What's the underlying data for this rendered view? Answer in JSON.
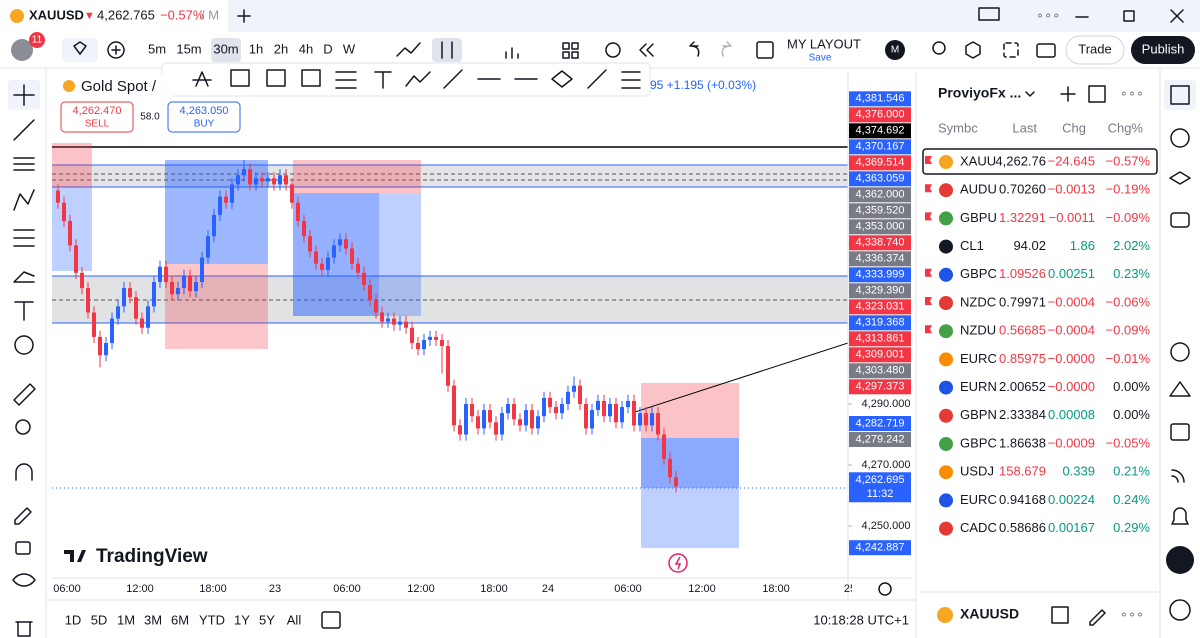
{
  "tab": {
    "symbol": "XAUUSD",
    "arrow": "▼",
    "price": "4,262.765",
    "change": "−0.57%",
    "suffix": "/ M"
  },
  "toolbar": {
    "badge": "11",
    "intervals": [
      "5m",
      "15m",
      "30m",
      "1h",
      "2h",
      "4h",
      "D",
      "W"
    ],
    "layout": "MY LAYOUT",
    "save": "Save",
    "avatar": "M",
    "trade": "Trade",
    "publish": "Publish"
  },
  "legend": {
    "symbol": "Gold Spot /",
    "sell_price": "4,262.470",
    "sell": "SELL",
    "spread": "58.0",
    "buy_price": "4,263.050",
    "buy": "BUY",
    "change": "95 +1.195 (+0.03%)"
  },
  "chart_data": {
    "type": "candlestick",
    "up_color": "#2962ff",
    "down_color": "#f23645",
    "open": [
      4360,
      4356,
      4350,
      4342,
      4333,
      4328,
      4320,
      4312,
      4306,
      4310,
      4318,
      4322,
      4328,
      4325,
      4318,
      4315,
      4322,
      4330,
      4335,
      4330,
      4326,
      4328,
      4332,
      4327,
      4330,
      4338,
      4345,
      4352,
      4358,
      4356,
      4362,
      4365,
      4367,
      4362,
      4364,
      4363,
      4364,
      4362,
      4365,
      4362,
      4356,
      4350,
      4345,
      4340,
      4336,
      4334,
      4338,
      4342,
      4344,
      4341,
      4336,
      4333,
      4329,
      4324,
      4320,
      4317,
      4318,
      4316,
      4317,
      4315,
      4310,
      4308,
      4311,
      4312,
      4311,
      4309,
      4296,
      4283,
      4280,
      4290,
      4286,
      4282,
      4288,
      4284,
      4280,
      4287,
      4290,
      4285,
      4283,
      4288,
      4282,
      4286,
      4292,
      4289,
      4287,
      4290,
      4294,
      4296,
      4290,
      4282,
      4288,
      4291,
      4286,
      4290,
      4284,
      4289,
      4291,
      4283,
      4287,
      4283,
      4287,
      4280,
      4272,
      4266
    ],
    "high": [
      4362,
      4358,
      4352,
      4344,
      4335,
      4330,
      4322,
      4314,
      4312,
      4320,
      4324,
      4330,
      4330,
      4327,
      4320,
      4324,
      4332,
      4337,
      4337,
      4332,
      4330,
      4334,
      4334,
      4332,
      4340,
      4347,
      4354,
      4360,
      4360,
      4364,
      4367,
      4370,
      4369,
      4366,
      4366,
      4366,
      4366,
      4367,
      4367,
      4364,
      4358,
      4352,
      4347,
      4342,
      4338,
      4340,
      4344,
      4346,
      4346,
      4343,
      4338,
      4335,
      4331,
      4326,
      4322,
      4320,
      4320,
      4319,
      4319,
      4317,
      4312,
      4313,
      4314,
      4314,
      4313,
      4311,
      4298,
      4285,
      4292,
      4292,
      4288,
      4290,
      4290,
      4286,
      4289,
      4292,
      4292,
      4287,
      4290,
      4290,
      4288,
      4294,
      4294,
      4291,
      4292,
      4296,
      4299,
      4298,
      4292,
      4290,
      4293,
      4293,
      4292,
      4292,
      4291,
      4293,
      4293,
      4289,
      4289,
      4289,
      4289,
      4282,
      4274,
      4268
    ],
    "low": [
      4354,
      4348,
      4340,
      4331,
      4326,
      4318,
      4310,
      4302,
      4304,
      4308,
      4316,
      4320,
      4323,
      4316,
      4313,
      4313,
      4320,
      4328,
      4328,
      4324,
      4324,
      4326,
      4325,
      4325,
      4328,
      4336,
      4343,
      4350,
      4354,
      4354,
      4360,
      4363,
      4360,
      4360,
      4361,
      4361,
      4360,
      4360,
      4360,
      4354,
      4348,
      4343,
      4338,
      4334,
      4332,
      4332,
      4336,
      4340,
      4339,
      4334,
      4331,
      4327,
      4322,
      4318,
      4315,
      4315,
      4314,
      4314,
      4313,
      4308,
      4306,
      4306,
      4309,
      4309,
      4300,
      4294,
      4281,
      4278,
      4278,
      4284,
      4280,
      4280,
      4282,
      4278,
      4278,
      4285,
      4283,
      4281,
      4281,
      4280,
      4280,
      4284,
      4287,
      4285,
      4285,
      4288,
      4292,
      4288,
      4280,
      4280,
      4286,
      4284,
      4284,
      4282,
      4282,
      4287,
      4281,
      4281,
      4281,
      4281,
      4278,
      4270,
      4264,
      4261
    ],
    "close": [
      4356,
      4350,
      4342,
      4333,
      4328,
      4320,
      4312,
      4306,
      4310,
      4318,
      4322,
      4328,
      4325,
      4318,
      4315,
      4322,
      4330,
      4335,
      4330,
      4326,
      4328,
      4332,
      4327,
      4330,
      4338,
      4345,
      4352,
      4358,
      4356,
      4362,
      4365,
      4367,
      4362,
      4364,
      4363,
      4364,
      4362,
      4365,
      4362,
      4356,
      4350,
      4345,
      4340,
      4336,
      4334,
      4338,
      4342,
      4344,
      4341,
      4336,
      4333,
      4329,
      4324,
      4320,
      4317,
      4318,
      4316,
      4317,
      4315,
      4310,
      4308,
      4311,
      4312,
      4311,
      4309,
      4296,
      4283,
      4280,
      4290,
      4286,
      4282,
      4288,
      4284,
      4280,
      4287,
      4290,
      4285,
      4283,
      4288,
      4282,
      4286,
      4292,
      4289,
      4287,
      4290,
      4294,
      4296,
      4290,
      4282,
      4288,
      4291,
      4286,
      4290,
      4284,
      4289,
      4291,
      4283,
      4287,
      4283,
      4287,
      4280,
      4272,
      4266,
      4263
    ],
    "ylim": [
      4232.95,
      4398.85
    ],
    "yticks": [
      {
        "value": 4290,
        "label": "4,290.000"
      },
      {
        "value": 4270,
        "label": "4,270.000"
      },
      {
        "value": 4250,
        "label": "4,250.000"
      }
    ],
    "price_tags": [
      {
        "value": 4381.546,
        "label": "4,381.546",
        "color": "#2962ff"
      },
      {
        "value": 4376,
        "label": "4,376.000",
        "color": "#f23645"
      },
      {
        "value": 4374.692,
        "label": "4,374.692",
        "color": "#000000"
      },
      {
        "value": 4370.167,
        "label": "4,370.167",
        "color": "#2962ff"
      },
      {
        "value": 4369.514,
        "label": "4,369.514",
        "color": "#f23645"
      },
      {
        "value": 4363.059,
        "label": "4,363.059",
        "color": "#2962ff"
      },
      {
        "value": 4362,
        "label": "4,362.000",
        "color": "#787b86"
      },
      {
        "value": 4359.52,
        "label": "4,359.520",
        "color": "#787b86"
      },
      {
        "value": 4353,
        "label": "4,353.000",
        "color": "#787b86"
      },
      {
        "value": 4338.74,
        "label": "4,338.740",
        "color": "#f23645"
      },
      {
        "value": 4336.374,
        "label": "4,336.374",
        "color": "#787b86"
      },
      {
        "value": 4333.999,
        "label": "4,333.999",
        "color": "#2962ff"
      },
      {
        "value": 4329.39,
        "label": "4,329.390",
        "color": "#787b86"
      },
      {
        "value": 4323.031,
        "label": "4,323.031",
        "color": "#f23645"
      },
      {
        "value": 4319.368,
        "label": "4,319.368",
        "color": "#2962ff"
      },
      {
        "value": 4313.861,
        "label": "4,313.861",
        "color": "#f23645"
      },
      {
        "value": 4309.001,
        "label": "4,309.001",
        "color": "#f23645"
      },
      {
        "value": 4303.48,
        "label": "4,303.480",
        "color": "#787b86"
      },
      {
        "value": 4297.373,
        "label": "4,297.373",
        "color": "#f23645"
      },
      {
        "value": 4282.719,
        "label": "4,282.719",
        "color": "#2962ff"
      },
      {
        "value": 4279.242,
        "label": "4,279.242",
        "color": "#787b86"
      },
      {
        "value": 4262.695,
        "label": "4,262.695",
        "color": "#2962ff",
        "countdown": "11:32"
      },
      {
        "value": 4242.887,
        "label": "4,242.887",
        "color": "#2962ff"
      }
    ],
    "xlabels": [
      "06:00",
      "12:00",
      "18:00",
      "23",
      "06:00",
      "12:00",
      "18:00",
      "24",
      "06:00",
      "12:00",
      "18:00",
      "25"
    ],
    "logo": "TradingView"
  },
  "bottom": {
    "ranges": [
      "1D",
      "5D",
      "1M",
      "3M",
      "6M",
      "YTD",
      "1Y",
      "5Y",
      "All"
    ],
    "clock": "10:18:28 UTC+1"
  },
  "watchlist": {
    "title": "ProviyoFx ...",
    "columns": [
      "Symbc",
      "Last",
      "Chg",
      "Chg%"
    ],
    "rows": [
      {
        "symbol": "XAUU",
        "last": "4,262.76",
        "chg": "−24.645",
        "chg_pct": "−0.57%",
        "last_color": "#131722",
        "flag": "#f23645"
      },
      {
        "symbol": "AUDU",
        "last": "0.70260",
        "chg": "−0.0013",
        "chg_pct": "−0.19%",
        "last_color": "#131722",
        "flag": "#f23645"
      },
      {
        "symbol": "GBPU",
        "last": "1.32291",
        "chg": "−0.0011",
        "chg_pct": "−0.09%",
        "last_color": "#f23645",
        "flag": "#f23645"
      },
      {
        "symbol": "CL1",
        "last": "94.02",
        "chg": "1.86",
        "chg_pct": "2.02%",
        "last_color": "#131722"
      },
      {
        "symbol": "GBPC",
        "last": "1.09526",
        "chg": "0.00251",
        "chg_pct": "0.23%",
        "last_color": "#f23645",
        "flag": "#f23645"
      },
      {
        "symbol": "NZDC",
        "last": "0.79971",
        "chg": "−0.0004",
        "chg_pct": "−0.06%",
        "last_color": "#131722",
        "flag": "#f23645"
      },
      {
        "symbol": "NZDU",
        "last": "0.56685",
        "chg": "−0.0004",
        "chg_pct": "−0.09%",
        "last_color": "#f23645",
        "flag": "#f23645"
      },
      {
        "symbol": "EURC",
        "last": "0.85975",
        "chg": "−0.0000",
        "chg_pct": "−0.01%",
        "last_color": "#f23645"
      },
      {
        "symbol": "EURN",
        "last": "2.00652",
        "chg": "−0.0000",
        "chg_pct": "0.00%",
        "last_color": "#131722"
      },
      {
        "symbol": "GBPN",
        "last": "2.33384",
        "chg": "0.00008",
        "chg_pct": "0.00%",
        "last_color": "#131722"
      },
      {
        "symbol": "GBPC",
        "last": "1.86638",
        "chg": "−0.0009",
        "chg_pct": "−0.05%",
        "last_color": "#131722"
      },
      {
        "symbol": "USDJ",
        "last": "158.679",
        "chg": "0.339",
        "chg_pct": "0.21%",
        "last_color": "#f23645"
      },
      {
        "symbol": "EURC",
        "last": "0.94168",
        "chg": "0.00224",
        "chg_pct": "0.24%",
        "last_color": "#131722"
      },
      {
        "symbol": "CADC",
        "last": "0.58686",
        "chg": "0.00167",
        "chg_pct": "0.29%",
        "last_color": "#131722"
      }
    ]
  },
  "detail": {
    "symbol": "XAUUSD"
  }
}
